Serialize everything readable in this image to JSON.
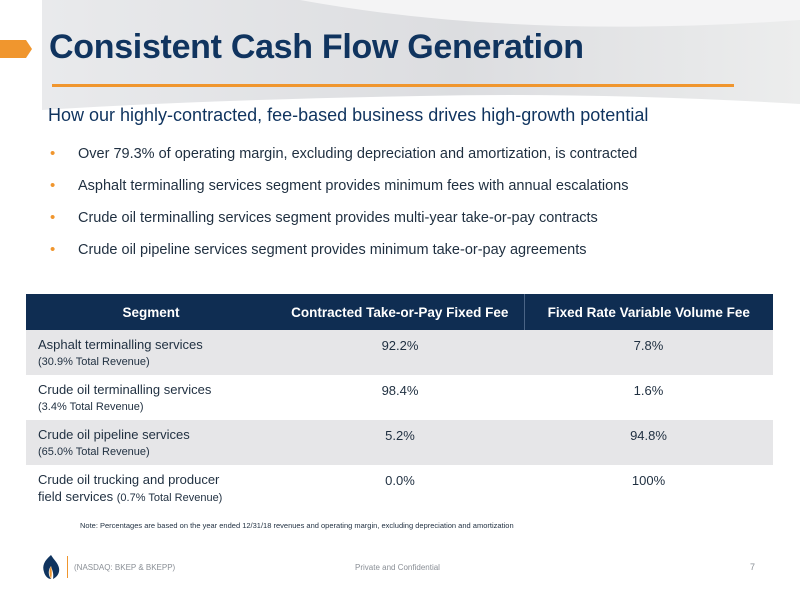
{
  "slide": {
    "title": "Consistent Cash Flow Generation",
    "subtitle": "How our highly-contracted, fee-based business drives high-growth potential",
    "bullet_glyph": "•",
    "bullets": [
      "Over 79.3% of operating margin, excluding depreciation and amortization, is contracted",
      "Asphalt terminalling services segment provides minimum fees with annual escalations",
      "Crude oil terminalling services segment provides multi-year take-or-pay contracts",
      "Crude oil pipeline services segment provides minimum take-or-pay agreements"
    ]
  },
  "table": {
    "headers": [
      "Segment",
      "Contracted Take-or-Pay Fixed Fee",
      "Fixed Rate Variable Volume Fee"
    ],
    "rows": [
      {
        "segment": "Asphalt terminalling services",
        "revenue": "(30.9% Total Revenue)",
        "fixed_fee": "92.2%",
        "variable_fee": "7.8%"
      },
      {
        "segment": "Crude oil terminalling services",
        "revenue": "(3.4% Total Revenue)",
        "fixed_fee": "98.4%",
        "variable_fee": "1.6%"
      },
      {
        "segment": "Crude oil pipeline services",
        "revenue": "(65.0% Total Revenue)",
        "fixed_fee": "5.2%",
        "variable_fee": "94.8%"
      },
      {
        "segment": "Crude oil trucking and producer",
        "segment_line2": "field services",
        "revenue": "(0.7% Total Revenue)",
        "fixed_fee": "0.0%",
        "variable_fee": "100%"
      }
    ]
  },
  "note": "Note: Percentages are based on the year ended 12/31/18 revenues and operating margin, excluding depreciation and amortization",
  "footer": {
    "ticker": "(NASDAQ: BKEP & BKEPP)",
    "confidential": "Private and Confidential",
    "page_number": "7",
    "logo_icon": "flame-logo-icon"
  },
  "colors": {
    "navy": "#10345f",
    "header_navy": "#0f2d52",
    "orange": "#f0962e",
    "row_shade": "#e6e6e8"
  }
}
